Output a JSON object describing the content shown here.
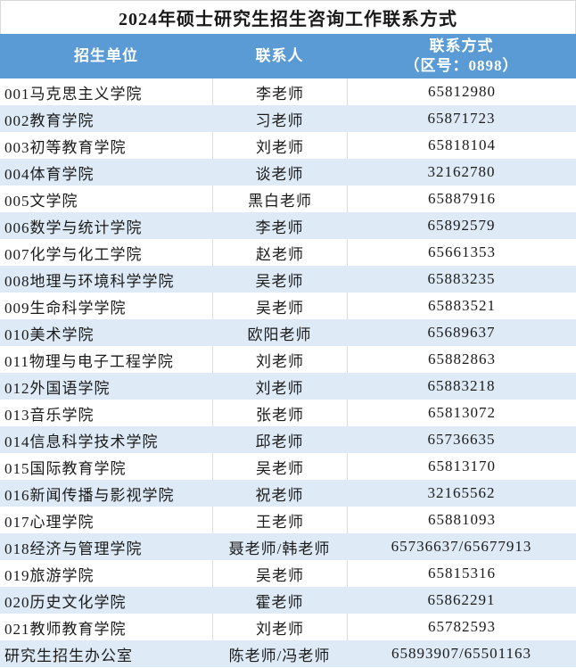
{
  "title": "2024年硕士研究生招生咨询工作联系方式",
  "table": {
    "columns": [
      {
        "key": "unit",
        "label": "招生单位"
      },
      {
        "key": "contact",
        "label": "联系人"
      },
      {
        "key": "phone",
        "label": "联系方式",
        "sublabel": "（区号：0898）"
      }
    ],
    "rows": [
      {
        "unit": "001马克思主义学院",
        "contact": "李老师",
        "phone": "65812980"
      },
      {
        "unit": "002教育学院",
        "contact": "习老师",
        "phone": "65871723"
      },
      {
        "unit": "003初等教育学院",
        "contact": "刘老师",
        "phone": "65818104"
      },
      {
        "unit": "004体育学院",
        "contact": "谈老师",
        "phone": "32162780"
      },
      {
        "unit": "005文学院",
        "contact": "黑白老师",
        "phone": "65887916"
      },
      {
        "unit": "006数学与统计学院",
        "contact": "李老师",
        "phone": "65892579"
      },
      {
        "unit": "007化学与化工学院",
        "contact": "赵老师",
        "phone": "65661353"
      },
      {
        "unit": "008地理与环境科学学院",
        "contact": "吴老师",
        "phone": "65883235"
      },
      {
        "unit": "009生命科学学院",
        "contact": "吴老师",
        "phone": "65883521"
      },
      {
        "unit": "010美术学院",
        "contact": "欧阳老师",
        "phone": "65689637"
      },
      {
        "unit": "011物理与电子工程学院",
        "contact": "刘老师",
        "phone": "65882863"
      },
      {
        "unit": "012外国语学院",
        "contact": "刘老师",
        "phone": "65883218"
      },
      {
        "unit": "013音乐学院",
        "contact": "张老师",
        "phone": "65813072"
      },
      {
        "unit": "014信息科学技术学院",
        "contact": "邱老师",
        "phone": "65736635"
      },
      {
        "unit": "015国际教育学院",
        "contact": "吴老师",
        "phone": "65813170"
      },
      {
        "unit": "016新闻传播与影视学院",
        "contact": "祝老师",
        "phone": "32165562"
      },
      {
        "unit": "017心理学院",
        "contact": "王老师",
        "phone": "65881093"
      },
      {
        "unit": "018经济与管理学院",
        "contact": "聂老师/韩老师",
        "phone": "65736637/65677913"
      },
      {
        "unit": "019旅游学院",
        "contact": "吴老师",
        "phone": "65815316"
      },
      {
        "unit": "020历史文化学院",
        "contact": "霍老师",
        "phone": "65862291"
      },
      {
        "unit": "021教师教育学院",
        "contact": "刘老师",
        "phone": "65782593"
      },
      {
        "unit": "研究生招生办公室",
        "contact": "陈老师/冯老师",
        "phone": "65893907/65501163"
      }
    ]
  },
  "colors": {
    "header_bg": "#5b9bd5",
    "header_text": "#ffffff",
    "stripe_bg": "#deebf7",
    "grid_line": "#dddddd",
    "body_text": "#1a1a1a"
  }
}
